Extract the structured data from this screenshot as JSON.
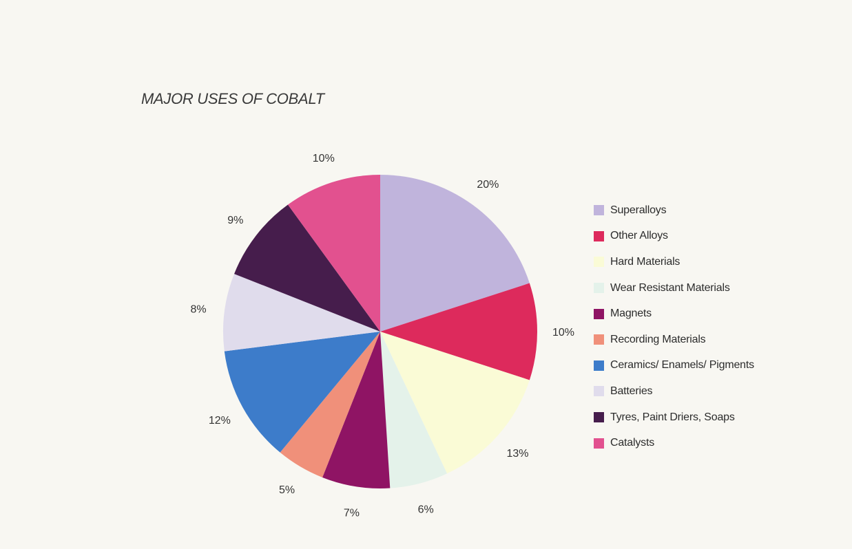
{
  "chart_data": {
    "type": "pie",
    "title": "MAJOR USES OF COBALT",
    "slices": [
      {
        "label": "Superalloys",
        "value": 20,
        "value_label": "20%",
        "color": "#c0b4dc"
      },
      {
        "label": "Other Alloys",
        "value": 10,
        "value_label": "10%",
        "color": "#dd2a5c"
      },
      {
        "label": "Hard Materials",
        "value": 13,
        "value_label": "13%",
        "color": "#fafbd6"
      },
      {
        "label": "Wear Resistant Materials",
        "value": 6,
        "value_label": "6%",
        "color": "#e4f2ea"
      },
      {
        "label": "Magnets",
        "value": 7,
        "value_label": "7%",
        "color": "#8f1464"
      },
      {
        "label": "Recording Materials",
        "value": 5,
        "value_label": "5%",
        "color": "#f0907a"
      },
      {
        "label": "Ceramics/ Enamels/ Pigments",
        "value": 12,
        "value_label": "12%",
        "color": "#3d7cca"
      },
      {
        "label": "Batteries",
        "value": 8,
        "value_label": "8%",
        "color": "#e0dcec"
      },
      {
        "label": "Tyres, Paint Driers, Soaps",
        "value": 9,
        "value_label": "9%",
        "color": "#461d4c"
      },
      {
        "label": "Catalysts",
        "value": 10,
        "value_label": "10%",
        "color": "#e2518f"
      }
    ],
    "legend_position": "right"
  }
}
